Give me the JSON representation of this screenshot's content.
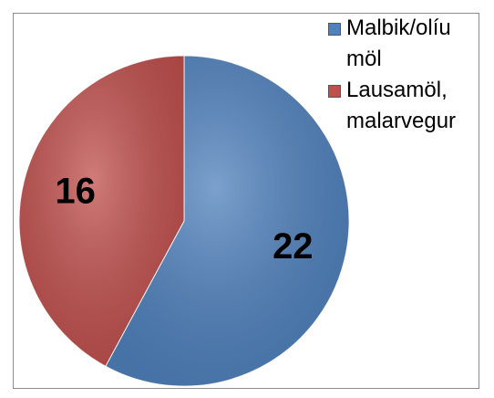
{
  "chart_data": {
    "type": "pie",
    "categories": [
      "Malbik/olíu möl",
      "Lausamöl, malarvegur"
    ],
    "values": [
      22,
      16
    ],
    "colors": [
      "#4f81bd",
      "#c0504d"
    ],
    "legend": "top-right"
  }
}
